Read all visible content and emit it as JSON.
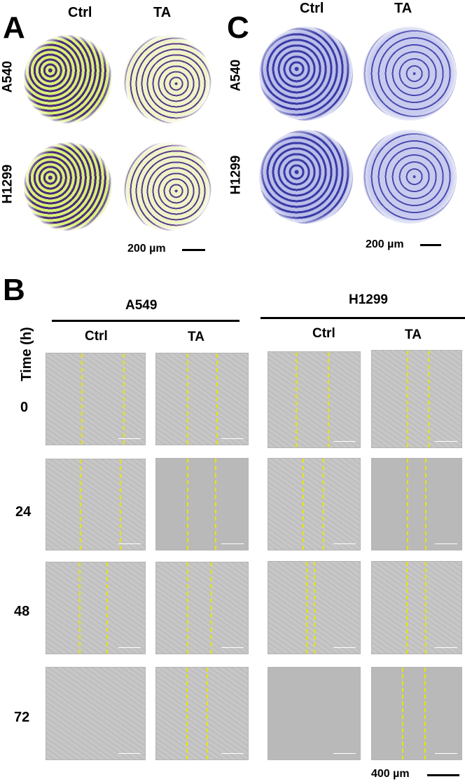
{
  "panel_a": {
    "letter": "A",
    "columns": [
      "Ctrl",
      "TA"
    ],
    "rows": [
      "A540",
      "H1299"
    ],
    "scale": "200 µm"
  },
  "panel_c": {
    "letter": "C",
    "columns": [
      "Ctrl",
      "TA"
    ],
    "rows": [
      "A540",
      "H1299"
    ],
    "scale": "200 µm"
  },
  "panel_b": {
    "letter": "B",
    "time_header": "Time (h)",
    "groups": [
      {
        "name": "A549",
        "columns": [
          "Ctrl",
          "TA"
        ]
      },
      {
        "name": "H1299",
        "columns": [
          "Ctrl",
          "TA"
        ]
      }
    ],
    "time_points": [
      "0",
      "24",
      "48",
      "72"
    ],
    "scale": "400 µm"
  }
}
